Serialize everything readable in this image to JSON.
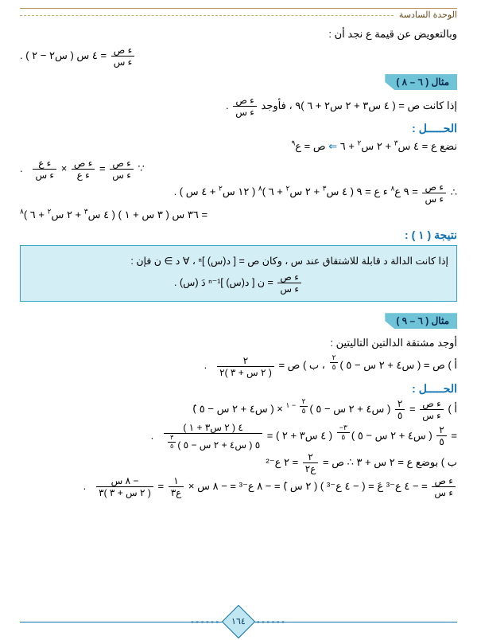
{
  "header": {
    "unit": "الوحدة السادسة"
  },
  "intro": {
    "l1": "وبالتعويض عن قيمة  ع  نجد أن :",
    "l2_pre": " = ٤ س ( س٢ − ٢ ) .",
    "frac_dydx_num": "ء ص",
    "frac_dydx_den": "ء س"
  },
  "ex68": {
    "label": "مثال  ( ٦ – ٨ )",
    "l1_a": "إذا كانت  ص = ( ٤ س٣ + ٢ س٢ + ٦ )٩   ،   فأوجد  ",
    "sol_title": "الحـــــل :",
    "s1": "نضع   ع =  ٤ س٣ + ٢ س٢ + ٦      ⇐     ص = ع٩",
    "s2_pre": "∵    ",
    "s2_mid": " = ",
    "s2_x": " × ",
    "frac_dydv_num": "ء ص",
    "frac_dydv_den": "ء ع",
    "frac_dvdx_num": "ء ع",
    "frac_dvdx_den": "ء س",
    "s3_pre": "∴   ",
    "s3_txt": " = ٩ ع٨ ء ع = ٩ ( ٤ س٣ + ٢ س٢ + ٦ )٨ ( ١٢ س٢ + ٤ س )  .",
    "s4": "= ٣٦ س ( ٣ س + ١ ) ( ٤ س٣ + ٢ س٢ + ٦ )٨"
  },
  "result1": {
    "title": "نتيجة ( ١ ) :",
    "box_l1": "إذا كانت الدالة  د  قابلة للاشتقاق عند س  ، وكان  ص = [ د(س) ]ⁿ  ،  ∀ د ∋ ن  فإن :",
    "box_l2_pre": "",
    "box_l2_txt": " = ن [ د(س) ]ⁿ⁻¹  دَ (س)   ."
  },
  "ex69": {
    "label": "مثال  ( ٦ – ٩ )",
    "prompt": "أوجد مشتقة الدالتين التاليتين :",
    "qA_a": "أ )   ص = ( س٤ + ٢ س − ٥ )",
    "qA_exp_num": "٢",
    "qA_exp_den": "٥",
    "qA_sep": "   ،        ب )   ص = ",
    "qB_num": "٢",
    "qB_den": "( ٢ س + ٣ )٢",
    "sol_title": "الحـــــل :",
    "a1_pre": "أ )   ",
    "a1_eq": " = ",
    "two_fifth_num": "٢",
    "two_fifth_den": "٥",
    "a1_mid": " ( س٤ + ٢ س − ٥ )",
    "a1_exp2_calc": " × ( س٤ + ٢ س − ٥ )َ",
    "a1_exp2_top": "٢",
    "a1_exp2_bot": "٥",
    "a1_exp_minus": " − ١",
    "a2_txt": " ( س٤ + ٢ س − ٥ )",
    "a2_exp_num": "٣−",
    "a2_exp_den": "٥",
    "a2_tail": " ( ٤ س٣ + ٢ ) = ",
    "big_frac_num": "٤ ( ٢ س٣ + ١ )",
    "big_frac_den": "٥ ( س٤ + ٢ س − ٥ )",
    "big_exp_num": "٣",
    "big_exp_den": "٥",
    "b_intro": "ب ) بوضع    ع = ٢ س + ٣         ∴   ص = ",
    "b_f_num": "٢",
    "b_f_den": "ع٢",
    "b_tail": " = ٢ ع⁻²",
    "b2_eq": " = − ٤ ع⁻³ عَ = ( − ٤ ع⁻³ ) ( ٢ س )َ = − ٨ ع⁻³ = − ٨ س × ",
    "b2_f2_num": "١",
    "b2_f2_den": "ع٣",
    "b2_final_num": "− ٨ س",
    "b2_final_den": "( ٢ س + ٣ )٣",
    "equals": " = "
  },
  "pagenum": "١٦٤"
}
